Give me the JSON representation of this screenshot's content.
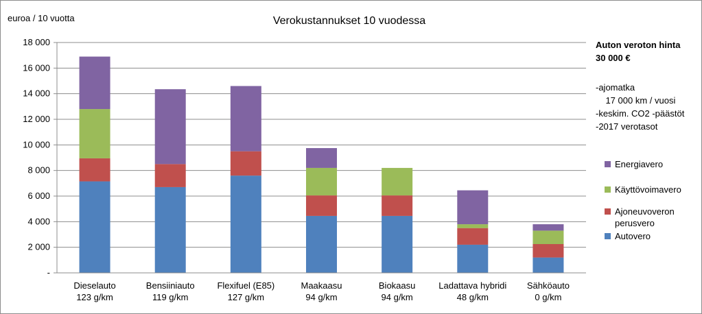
{
  "chart_data": {
    "type": "bar",
    "stacked": true,
    "title": "Verokustannukset 10 vuodessa",
    "ylabel": "euroa / 10 vuotta",
    "ylim": [
      0,
      18000
    ],
    "ytick_values": [
      0,
      2000,
      4000,
      6000,
      8000,
      10000,
      12000,
      14000,
      16000,
      18000
    ],
    "ytick_labels": [
      "-",
      "2 000",
      "4 000",
      "6 000",
      "8 000",
      "10 000",
      "12 000",
      "14 000",
      "16 000",
      "18 000"
    ],
    "grid": true,
    "legend_position": "right",
    "categories": [
      [
        "Dieselauto",
        "123 g/km"
      ],
      [
        "Bensiiniauto",
        "119 g/km"
      ],
      [
        "Flexifuel (E85)",
        "127 g/km"
      ],
      [
        "Maakaasu",
        "94 g/km"
      ],
      [
        "Biokaasu",
        "94 g/km"
      ],
      [
        "Ladattava hybridi",
        "48 g/km"
      ],
      [
        "Sähköauto",
        "0 g/km"
      ]
    ],
    "series": [
      {
        "name": [
          "Autovero"
        ],
        "color": "#4f81bd",
        "values": [
          7150,
          6700,
          7600,
          4450,
          4450,
          2200,
          1200
        ]
      },
      {
        "name": [
          "Ajoneuvoveron",
          "perusvero"
        ],
        "color": "#c0504d",
        "values": [
          1800,
          1800,
          1900,
          1600,
          1600,
          1300,
          1050
        ]
      },
      {
        "name": [
          "Käyttövoimavero"
        ],
        "color": "#9bbb59",
        "values": [
          3850,
          0,
          0,
          2150,
          2150,
          300,
          1050
        ]
      },
      {
        "name": [
          "Energiavero"
        ],
        "color": "#8064a2",
        "values": [
          4100,
          5850,
          5100,
          1550,
          0,
          2650,
          500
        ]
      }
    ]
  },
  "notes": {
    "heading": [
      "Auton veroton hinta",
      "30 000 €"
    ],
    "lines": [
      "-ajomatka",
      "  17 000 km / vuosi",
      "-keskim. CO2 -päästöt",
      "-2017 verotasot"
    ]
  }
}
